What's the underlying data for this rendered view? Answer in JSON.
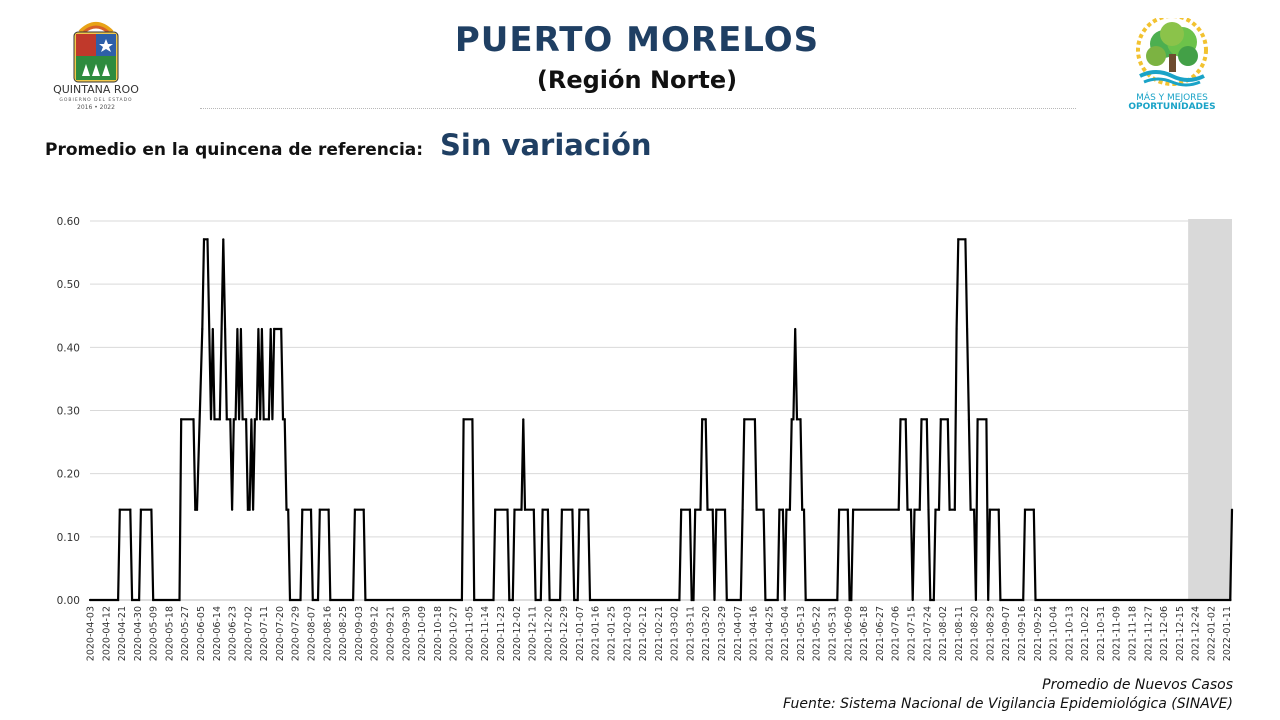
{
  "header": {
    "title": "PUERTO MORELOS",
    "subtitle": "(Región Norte)"
  },
  "logos": {
    "left": {
      "name": "QUINTANA ROO",
      "line2": "GOBIERNO DEL ESTADO",
      "line3": "2016 • 2022"
    },
    "right": {
      "line1": "MÁS Y MEJORES",
      "line2": "OPORTUNIDADES"
    }
  },
  "reference": {
    "label": "Promedio en la quincena de referencia:",
    "value": "Sin variación"
  },
  "footnotes": {
    "metric": "Promedio de Nuevos Casos",
    "source": "Fuente: Sistema Nacional de Vigilancia Epidemiológica (SINAVE)"
  },
  "colors": {
    "title": "#1f3f63",
    "line": "#000000",
    "shade": "#d9d9d9",
    "grid": "#d9d9d9"
  },
  "chart_data": {
    "type": "line",
    "title": "",
    "xlabel": "",
    "ylabel": "",
    "ylim": [
      0,
      0.6
    ],
    "yticks": [
      "0.00",
      "0.10",
      "0.20",
      "0.30",
      "0.40",
      "0.50",
      "0.60"
    ],
    "grid": true,
    "legend": "none",
    "shaded_region": {
      "x_start": "2021-12-20",
      "x_end": "2022-01-14"
    },
    "x_start": "2020-04-03",
    "x_end": "2022-01-14",
    "xticks": [
      "2020-04-03",
      "2020-04-12",
      "2020-04-21",
      "2020-04-30",
      "2020-05-09",
      "2020-05-18",
      "2020-05-27",
      "2020-06-05",
      "2020-06-14",
      "2020-06-23",
      "2020-07-02",
      "2020-07-11",
      "2020-07-20",
      "2020-07-29",
      "2020-08-07",
      "2020-08-16",
      "2020-08-25",
      "2020-09-03",
      "2020-09-12",
      "2020-09-21",
      "2020-09-30",
      "2020-10-09",
      "2020-10-18",
      "2020-10-27",
      "2020-11-05",
      "2020-11-14",
      "2020-11-23",
      "2020-12-02",
      "2020-12-11",
      "2020-12-20",
      "2020-12-29",
      "2021-01-07",
      "2021-01-16",
      "2021-01-25",
      "2021-02-03",
      "2021-02-12",
      "2021-02-21",
      "2021-03-02",
      "2021-03-11",
      "2021-03-20",
      "2021-03-29",
      "2021-04-07",
      "2021-04-16",
      "2021-04-25",
      "2021-05-04",
      "2021-05-13",
      "2021-05-22",
      "2021-05-31",
      "2021-06-09",
      "2021-06-18",
      "2021-06-27",
      "2021-07-06",
      "2021-07-15",
      "2021-07-24",
      "2021-08-02",
      "2021-08-11",
      "2021-08-20",
      "2021-08-29",
      "2021-09-07",
      "2021-09-16",
      "2021-09-25",
      "2021-10-04",
      "2021-10-13",
      "2021-10-22",
      "2021-10-31",
      "2021-11-09",
      "2021-11-18",
      "2021-11-27",
      "2021-12-06",
      "2021-12-15",
      "2021-12-24",
      "2022-01-02",
      "2022-01-11"
    ],
    "series": [
      {
        "points": [
          [
            "2020-04-03",
            0
          ],
          [
            "2020-04-19",
            0
          ],
          [
            "2020-04-20",
            0.143
          ],
          [
            "2020-04-26",
            0.143
          ],
          [
            "2020-04-27",
            0
          ],
          [
            "2020-05-01",
            0
          ],
          [
            "2020-05-02",
            0.143
          ],
          [
            "2020-05-08",
            0.143
          ],
          [
            "2020-05-09",
            0
          ],
          [
            "2020-05-24",
            0
          ],
          [
            "2020-05-25",
            0.286
          ],
          [
            "2020-06-01",
            0.286
          ],
          [
            "2020-06-02",
            0.143
          ],
          [
            "2020-06-03",
            0.143
          ],
          [
            "2020-06-06",
            0.429
          ],
          [
            "2020-06-07",
            0.571
          ],
          [
            "2020-06-09",
            0.571
          ],
          [
            "2020-06-11",
            0.286
          ],
          [
            "2020-06-12",
            0.429
          ],
          [
            "2020-06-13",
            0.286
          ],
          [
            "2020-06-16",
            0.286
          ],
          [
            "2020-06-17",
            0.429
          ],
          [
            "2020-06-18",
            0.571
          ],
          [
            "2020-06-19",
            0.429
          ],
          [
            "2020-06-20",
            0.286
          ],
          [
            "2020-06-22",
            0.286
          ],
          [
            "2020-06-23",
            0.143
          ],
          [
            "2020-06-24",
            0.286
          ],
          [
            "2020-06-25",
            0.286
          ],
          [
            "2020-06-26",
            0.429
          ],
          [
            "2020-06-27",
            0.286
          ],
          [
            "2020-06-28",
            0.429
          ],
          [
            "2020-06-29",
            0.286
          ],
          [
            "2020-07-01",
            0.286
          ],
          [
            "2020-07-02",
            0.143
          ],
          [
            "2020-07-03",
            0.143
          ],
          [
            "2020-07-04",
            0.286
          ],
          [
            "2020-07-05",
            0.143
          ],
          [
            "2020-07-06",
            0.286
          ],
          [
            "2020-07-07",
            0.286
          ],
          [
            "2020-07-08",
            0.429
          ],
          [
            "2020-07-09",
            0.286
          ],
          [
            "2020-07-10",
            0.429
          ],
          [
            "2020-07-11",
            0.286
          ],
          [
            "2020-07-14",
            0.286
          ],
          [
            "2020-07-15",
            0.429
          ],
          [
            "2020-07-16",
            0.286
          ],
          [
            "2020-07-17",
            0.429
          ],
          [
            "2020-07-21",
            0.429
          ],
          [
            "2020-07-22",
            0.286
          ],
          [
            "2020-07-23",
            0.286
          ],
          [
            "2020-07-24",
            0.143
          ],
          [
            "2020-07-25",
            0.143
          ],
          [
            "2020-07-26",
            0
          ],
          [
            "2020-08-01",
            0
          ],
          [
            "2020-08-02",
            0.143
          ],
          [
            "2020-08-07",
            0.143
          ],
          [
            "2020-08-08",
            0
          ],
          [
            "2020-08-11",
            0
          ],
          [
            "2020-08-12",
            0.143
          ],
          [
            "2020-08-17",
            0.143
          ],
          [
            "2020-08-18",
            0
          ],
          [
            "2020-08-31",
            0
          ],
          [
            "2020-09-01",
            0.143
          ],
          [
            "2020-09-06",
            0.143
          ],
          [
            "2020-09-07",
            0
          ],
          [
            "2020-11-01",
            0
          ],
          [
            "2020-11-02",
            0.286
          ],
          [
            "2020-11-07",
            0.286
          ],
          [
            "2020-11-08",
            0
          ],
          [
            "2020-11-19",
            0
          ],
          [
            "2020-11-20",
            0.143
          ],
          [
            "2020-11-27",
            0.143
          ],
          [
            "2020-11-28",
            0
          ],
          [
            "2020-11-30",
            0
          ],
          [
            "2020-12-01",
            0.143
          ],
          [
            "2020-12-05",
            0.143
          ],
          [
            "2020-12-06",
            0.286
          ],
          [
            "2020-12-07",
            0.143
          ],
          [
            "2020-12-12",
            0.143
          ],
          [
            "2020-12-13",
            0
          ],
          [
            "2020-12-16",
            0
          ],
          [
            "2020-12-17",
            0.143
          ],
          [
            "2020-12-20",
            0.143
          ],
          [
            "2020-12-21",
            0
          ],
          [
            "2020-12-27",
            0
          ],
          [
            "2020-12-28",
            0.143
          ],
          [
            "2021-01-03",
            0.143
          ],
          [
            "2021-01-04",
            0
          ],
          [
            "2021-01-06",
            0
          ],
          [
            "2021-01-07",
            0.143
          ],
          [
            "2021-01-12",
            0.143
          ],
          [
            "2021-01-13",
            0
          ],
          [
            "2021-03-05",
            0
          ],
          [
            "2021-03-06",
            0.143
          ],
          [
            "2021-03-11",
            0.143
          ],
          [
            "2021-03-12",
            0
          ],
          [
            "2021-03-13",
            0
          ],
          [
            "2021-03-14",
            0.143
          ],
          [
            "2021-03-17",
            0.143
          ],
          [
            "2021-03-18",
            0.286
          ],
          [
            "2021-03-20",
            0.286
          ],
          [
            "2021-03-21",
            0.143
          ],
          [
            "2021-03-24",
            0.143
          ],
          [
            "2021-03-25",
            0
          ],
          [
            "2021-03-26",
            0.143
          ],
          [
            "2021-03-31",
            0.143
          ],
          [
            "2021-04-01",
            0
          ],
          [
            "2021-04-09",
            0
          ],
          [
            "2021-04-10",
            0.143
          ],
          [
            "2021-04-11",
            0.286
          ],
          [
            "2021-04-17",
            0.286
          ],
          [
            "2021-04-18",
            0.143
          ],
          [
            "2021-04-22",
            0.143
          ],
          [
            "2021-04-23",
            0
          ],
          [
            "2021-04-30",
            0
          ],
          [
            "2021-05-01",
            0.143
          ],
          [
            "2021-05-03",
            0.143
          ],
          [
            "2021-05-04",
            0
          ],
          [
            "2021-05-05",
            0.143
          ],
          [
            "2021-05-07",
            0.143
          ],
          [
            "2021-05-08",
            0.286
          ],
          [
            "2021-05-09",
            0.286
          ],
          [
            "2021-05-10",
            0.429
          ],
          [
            "2021-05-11",
            0.286
          ],
          [
            "2021-05-13",
            0.286
          ],
          [
            "2021-05-14",
            0.143
          ],
          [
            "2021-05-15",
            0.143
          ],
          [
            "2021-05-16",
            0
          ],
          [
            "2021-06-03",
            0
          ],
          [
            "2021-06-04",
            0.143
          ],
          [
            "2021-06-09",
            0.143
          ],
          [
            "2021-06-10",
            0
          ],
          [
            "2021-06-11",
            0
          ],
          [
            "2021-06-12",
            0.143
          ],
          [
            "2021-07-08",
            0.143
          ],
          [
            "2021-07-09",
            0.286
          ],
          [
            "2021-07-12",
            0.286
          ],
          [
            "2021-07-13",
            0.143
          ],
          [
            "2021-07-15",
            0.143
          ],
          [
            "2021-07-16",
            0
          ],
          [
            "2021-07-17",
            0.143
          ],
          [
            "2021-07-20",
            0.143
          ],
          [
            "2021-07-21",
            0.286
          ],
          [
            "2021-07-24",
            0.286
          ],
          [
            "2021-07-25",
            0.143
          ],
          [
            "2021-07-26",
            0
          ],
          [
            "2021-07-28",
            0
          ],
          [
            "2021-07-29",
            0.143
          ],
          [
            "2021-07-31",
            0.143
          ],
          [
            "2021-08-01",
            0.286
          ],
          [
            "2021-08-05",
            0.286
          ],
          [
            "2021-08-06",
            0.143
          ],
          [
            "2021-08-09",
            0.143
          ],
          [
            "2021-08-10",
            0.429
          ],
          [
            "2021-08-11",
            0.571
          ],
          [
            "2021-08-15",
            0.571
          ],
          [
            "2021-08-16",
            0.429
          ],
          [
            "2021-08-17",
            0.286
          ],
          [
            "2021-08-18",
            0.143
          ],
          [
            "2021-08-20",
            0.143
          ],
          [
            "2021-08-21",
            0
          ],
          [
            "2021-08-22",
            0.286
          ],
          [
            "2021-08-27",
            0.286
          ],
          [
            "2021-08-28",
            0
          ],
          [
            "2021-08-29",
            0.143
          ],
          [
            "2021-09-03",
            0.143
          ],
          [
            "2021-09-04",
            0
          ],
          [
            "2021-09-17",
            0
          ],
          [
            "2021-09-18",
            0.143
          ],
          [
            "2021-09-23",
            0.143
          ],
          [
            "2021-09-24",
            0
          ],
          [
            "2022-01-13",
            0
          ],
          [
            "2022-01-14",
            0.143
          ]
        ]
      }
    ]
  }
}
